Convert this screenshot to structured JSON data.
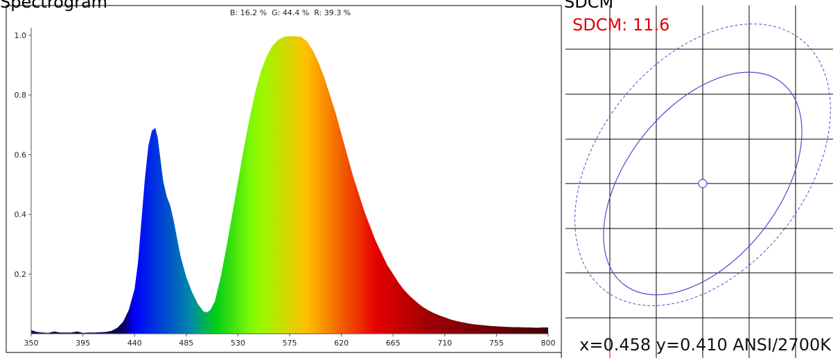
{
  "spectrogram": {
    "title": "Spectrogram",
    "ratio_label": "B: 16.2 %  G: 44.4 %  R: 39.3 %"
  },
  "sdcm": {
    "title": "SDCM",
    "value_label": "SDCM: 11.6",
    "value_color": "#e00000",
    "ellipse_color": "#4a4ad0",
    "coords_label": "x=0.458 y=0.410 ANSI/2700K"
  },
  "chart_data": {
    "type": "area",
    "title": "",
    "xlabel": "",
    "ylabel": "",
    "xlim": [
      350,
      800
    ],
    "ylim": [
      0,
      1.03
    ],
    "x_ticks": [
      350,
      395,
      440,
      485,
      530,
      575,
      620,
      665,
      710,
      755,
      800
    ],
    "y_ticks": [
      0.2,
      0.4,
      0.6,
      0.8,
      1.0
    ],
    "series": [
      {
        "x": [
          350,
          355,
          360,
          365,
          370,
          375,
          380,
          385,
          390,
          395,
          400,
          405,
          410,
          415,
          420,
          425,
          430,
          435,
          440,
          443,
          446,
          449,
          452,
          455,
          458,
          460,
          462,
          465,
          468,
          471,
          474,
          477,
          480,
          485,
          490,
          495,
          500,
          503,
          506,
          510,
          515,
          520,
          525,
          530,
          535,
          540,
          545,
          550,
          555,
          560,
          565,
          570,
          575,
          580,
          585,
          590,
          595,
          600,
          605,
          610,
          615,
          620,
          625,
          630,
          635,
          640,
          645,
          650,
          655,
          660,
          665,
          670,
          675,
          680,
          685,
          690,
          695,
          700,
          705,
          710,
          715,
          720,
          725,
          730,
          735,
          740,
          745,
          750,
          755,
          760,
          765,
          770,
          775,
          780,
          785,
          790,
          795,
          800
        ],
        "y": [
          0.012,
          0.006,
          0.004,
          0.003,
          0.008,
          0.004,
          0.004,
          0.004,
          0.008,
          0.003,
          0.004,
          0.004,
          0.005,
          0.006,
          0.01,
          0.02,
          0.04,
          0.08,
          0.15,
          0.24,
          0.38,
          0.52,
          0.63,
          0.68,
          0.69,
          0.66,
          0.6,
          0.51,
          0.46,
          0.43,
          0.38,
          0.32,
          0.26,
          0.19,
          0.14,
          0.1,
          0.075,
          0.072,
          0.08,
          0.11,
          0.19,
          0.29,
          0.4,
          0.51,
          0.62,
          0.72,
          0.81,
          0.88,
          0.93,
          0.965,
          0.985,
          0.995,
          0.997,
          0.997,
          0.995,
          0.98,
          0.95,
          0.91,
          0.86,
          0.8,
          0.74,
          0.67,
          0.6,
          0.53,
          0.47,
          0.41,
          0.36,
          0.31,
          0.27,
          0.23,
          0.2,
          0.17,
          0.145,
          0.125,
          0.108,
          0.092,
          0.08,
          0.07,
          0.062,
          0.055,
          0.048,
          0.043,
          0.039,
          0.035,
          0.032,
          0.03,
          0.028,
          0.026,
          0.025,
          0.024,
          0.023,
          0.022,
          0.022,
          0.021,
          0.021,
          0.02,
          0.021,
          0.021
        ]
      }
    ]
  }
}
